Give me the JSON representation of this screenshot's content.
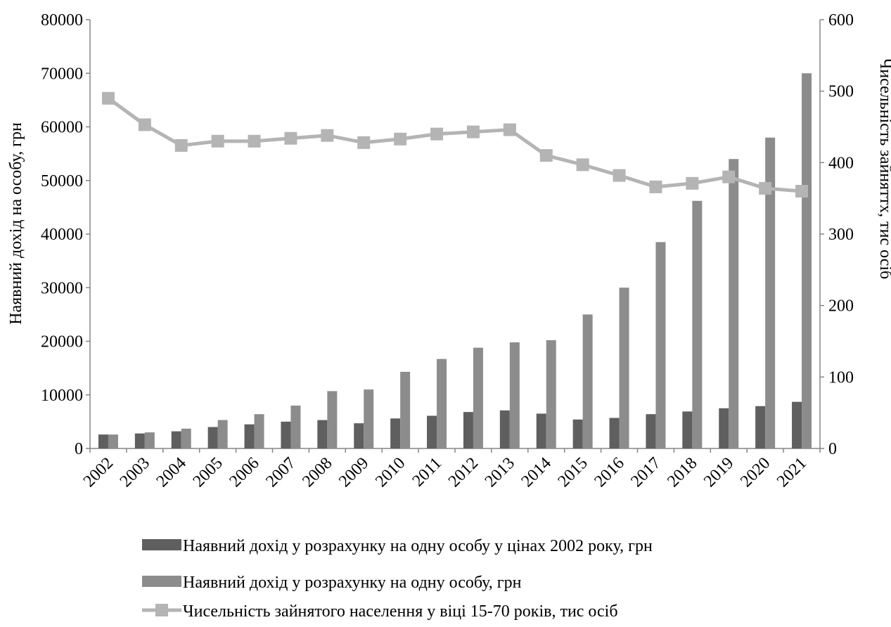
{
  "chart_data": {
    "type": "bar",
    "categories": [
      "2002",
      "2003",
      "2004",
      "2005",
      "2006",
      "2007",
      "2008",
      "2009",
      "2010",
      "2011",
      "2012",
      "2013",
      "2014",
      "2015",
      "2016",
      "2017",
      "2018",
      "2019",
      "2020",
      "2021"
    ],
    "series": [
      {
        "name": "Наявний дохід у розрахунку на одну особу у цінах 2002 року, грн",
        "kind": "bar",
        "axis": "left",
        "color": "#5f5f5f",
        "values": [
          2600,
          2800,
          3200,
          4000,
          4500,
          5000,
          5300,
          4700,
          5600,
          6100,
          6800,
          7100,
          6500,
          5400,
          5700,
          6400,
          6900,
          7500,
          7900,
          8700
        ]
      },
      {
        "name": "Наявний дохід у розрахунку на одну особу, грн",
        "kind": "bar",
        "axis": "left",
        "color": "#8c8c8c",
        "values": [
          2600,
          3000,
          3700,
          5300,
          6400,
          8000,
          10700,
          11000,
          14300,
          16700,
          18800,
          19800,
          20200,
          25000,
          30000,
          38500,
          46200,
          54000,
          58000,
          70000
        ]
      },
      {
        "name": "Чисельність зайнятого населення у віці 15-70 років, тис осіб",
        "kind": "line",
        "axis": "right",
        "color": "#b4b4b4",
        "values": [
          490,
          453,
          424,
          430,
          430,
          434,
          438,
          428,
          433,
          440,
          443,
          446,
          410,
          397,
          382,
          366,
          371,
          380,
          364,
          360
        ]
      }
    ],
    "ylabel": "Наявний дохід на  особу, грн",
    "y2label": "Чисельність зайняттх, тис осіб",
    "ylim": [
      0,
      80000
    ],
    "y2lim": [
      0,
      600
    ],
    "yticks": [
      "0",
      "10000",
      "20000",
      "30000",
      "40000",
      "50000",
      "60000",
      "70000",
      "80000"
    ],
    "y2ticks": [
      "0",
      "100",
      "200",
      "300",
      "400",
      "500",
      "600"
    ],
    "grid": false,
    "legend_position": "bottom"
  }
}
